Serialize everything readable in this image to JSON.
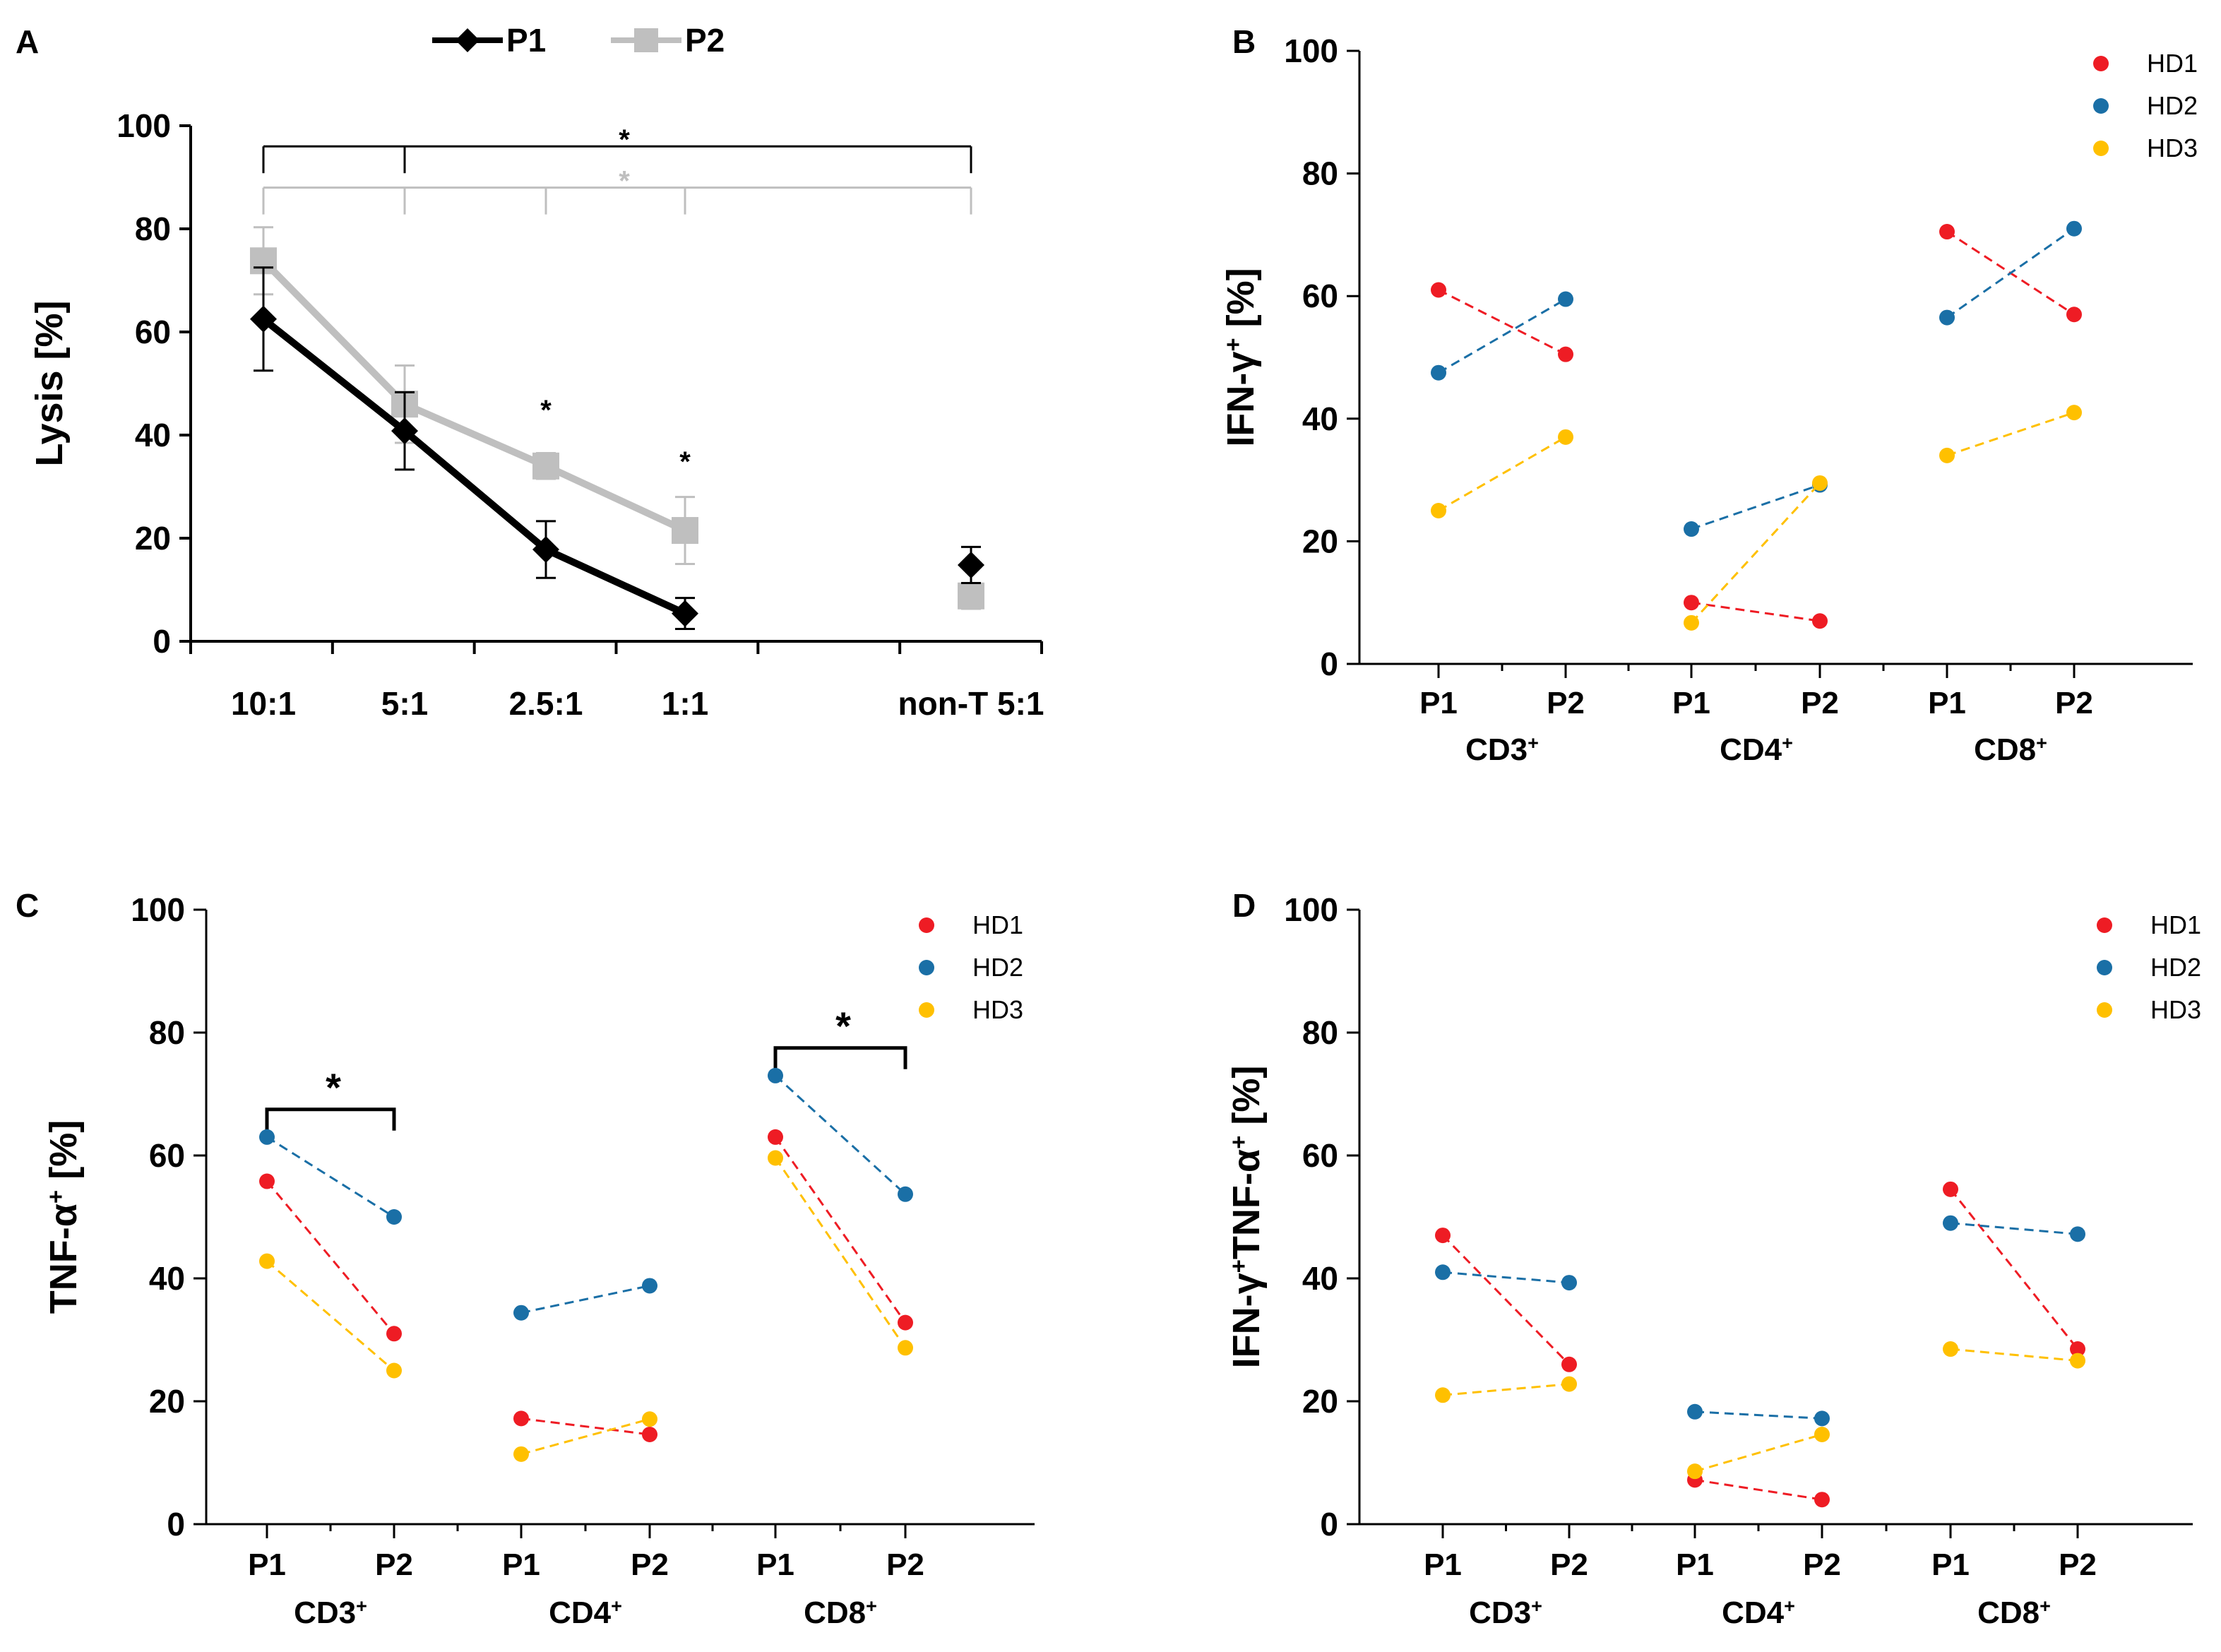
{
  "figure": {
    "panel_labels": [
      "A",
      "B",
      "C",
      "D"
    ],
    "legend_a": [
      {
        "name": "P1",
        "color": "#000000",
        "marker": "diamond"
      },
      {
        "name": "P2",
        "color": "#bfbfbf",
        "marker": "square"
      }
    ],
    "legend_hd": [
      {
        "name": "HD1",
        "color": "#ee1c24"
      },
      {
        "name": "HD2",
        "color": "#1a6fa6"
      },
      {
        "name": "HD3",
        "color": "#ffc000"
      }
    ],
    "sig_marker": "*"
  },
  "chart_data": [
    {
      "panel": "A",
      "type": "line",
      "ylabel": "Lysis [%]",
      "xlabel": "",
      "ylim": [
        0,
        100
      ],
      "yticks": [
        0,
        20,
        40,
        60,
        80,
        100
      ],
      "categories": [
        "10:1",
        "5:1",
        "2.5:1",
        "1:1",
        "non-T 5:1"
      ],
      "series": [
        {
          "name": "P1",
          "color": "#000000",
          "marker": "diamond",
          "values": [
            62.5,
            40.8,
            17.8,
            5.4,
            14.8
          ],
          "errors": [
            10.0,
            7.5,
            5.5,
            3.0,
            3.5
          ],
          "connected_points": 4
        },
        {
          "name": "P2",
          "color": "#bfbfbf",
          "marker": "square",
          "values": [
            73.8,
            46.0,
            34.0,
            21.5,
            8.8
          ],
          "errors": [
            6.5,
            7.5,
            2.5,
            6.5,
            2.5
          ],
          "connected_points": 4
        }
      ],
      "significance": [
        {
          "category": "2.5:1",
          "label": "*",
          "y": 43
        },
        {
          "category": "1:1",
          "label": "*",
          "y": 33
        }
      ],
      "brackets": [
        {
          "color": "#000000",
          "y": 96,
          "ticks": [
            "10:1",
            "5:1",
            "non-T 5:1"
          ],
          "label": "*"
        },
        {
          "color": "#bfbfbf",
          "y": 88,
          "ticks": [
            "10:1",
            "5:1",
            "2.5:1",
            "1:1",
            "non-T 5:1"
          ],
          "label": "*"
        }
      ]
    },
    {
      "panel": "B",
      "type": "scatter",
      "ylabel": "IFN-γ⁺ [%]",
      "ylim": [
        0,
        100
      ],
      "yticks": [
        0,
        20,
        40,
        60,
        80,
        100
      ],
      "x_labels": [
        "P1",
        "P2",
        "P1",
        "P2",
        "P1",
        "P2"
      ],
      "groups": [
        "CD3⁺",
        "CD4⁺",
        "CD8⁺"
      ],
      "series": [
        {
          "name": "HD1",
          "color": "#ee1c24",
          "values": [
            [
              61,
              50.5
            ],
            [
              10,
              7
            ],
            [
              70.5,
              57
            ]
          ]
        },
        {
          "name": "HD2",
          "color": "#1a6fa6",
          "values": [
            [
              47.5,
              59.5
            ],
            [
              22,
              29.2
            ],
            [
              56.5,
              71
            ]
          ]
        },
        {
          "name": "HD3",
          "color": "#ffc000",
          "values": [
            [
              25,
              37
            ],
            [
              6.7,
              29.5
            ],
            [
              34,
              41
            ]
          ]
        }
      ],
      "brackets": []
    },
    {
      "panel": "C",
      "type": "scatter",
      "ylabel": "TNF-α⁺ [%]",
      "ylim": [
        0,
        100
      ],
      "yticks": [
        0,
        20,
        40,
        60,
        80,
        100
      ],
      "x_labels": [
        "P1",
        "P2",
        "P1",
        "P2",
        "P1",
        "P2"
      ],
      "groups": [
        "CD3⁺",
        "CD4⁺",
        "CD8⁺"
      ],
      "series": [
        {
          "name": "HD1",
          "color": "#ee1c24",
          "values": [
            [
              55.8,
              31
            ],
            [
              17.2,
              14.6
            ],
            [
              63,
              32.8
            ]
          ]
        },
        {
          "name": "HD2",
          "color": "#1a6fa6",
          "values": [
            [
              63,
              50
            ],
            [
              34.4,
              38.8
            ],
            [
              73,
              53.7
            ]
          ]
        },
        {
          "name": "HD3",
          "color": "#ffc000",
          "values": [
            [
              42.8,
              25
            ],
            [
              11.4,
              17.1
            ],
            [
              59.6,
              28.7
            ]
          ]
        }
      ],
      "brackets": [
        {
          "group": 0,
          "y": 67.5,
          "label": "*"
        },
        {
          "group": 2,
          "y": 77.5,
          "label": "*"
        }
      ]
    },
    {
      "panel": "D",
      "type": "scatter",
      "ylabel": "IFN-γ⁺TNF-α⁺ [%]",
      "ylim": [
        0,
        100
      ],
      "yticks": [
        0,
        20,
        40,
        60,
        80,
        100
      ],
      "x_labels": [
        "P1",
        "P2",
        "P1",
        "P2",
        "P1",
        "P2"
      ],
      "groups": [
        "CD3⁺",
        "CD4⁺",
        "CD8⁺"
      ],
      "series": [
        {
          "name": "HD1",
          "color": "#ee1c24",
          "values": [
            [
              47,
              26
            ],
            [
              7.2,
              4
            ],
            [
              54.5,
              28.5
            ]
          ]
        },
        {
          "name": "HD2",
          "color": "#1a6fa6",
          "values": [
            [
              41,
              39.3
            ],
            [
              18.3,
              17.2
            ],
            [
              49,
              47.2
            ]
          ]
        },
        {
          "name": "HD3",
          "color": "#ffc000",
          "values": [
            [
              21,
              22.8
            ],
            [
              8.6,
              14.6
            ],
            [
              28.5,
              26.6
            ]
          ]
        }
      ],
      "brackets": []
    }
  ]
}
